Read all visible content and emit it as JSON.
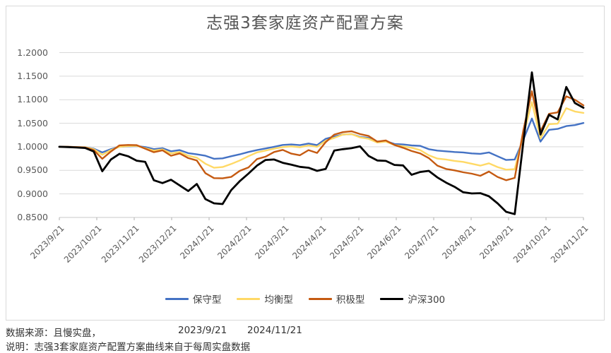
{
  "chart": {
    "title": "志强3套家庭资产配置方案"
  },
  "chart_data": {
    "type": "line",
    "title": "志强3套家庭资产配置方案",
    "ylim": [
      0.85,
      1.2
    ],
    "ytick_step": 0.05,
    "yticks": [
      "1.2000",
      "1.1500",
      "1.1000",
      "1.0500",
      "1.0000",
      "0.9500",
      "0.9000",
      "0.8500"
    ],
    "xticks": [
      "2023/9/21",
      "2023/10/21",
      "2023/11/21",
      "2023/12/21",
      "2024/1/21",
      "2024/2/21",
      "2024/3/21",
      "2024/4/21",
      "2024/5/21",
      "2024/6/21",
      "2024/7/21",
      "2024/8/21",
      "2024/9/21",
      "2024/10/21",
      "2024/11/21"
    ],
    "grid": "horizontal",
    "legend_position": "bottom",
    "series": [
      {
        "id": "conservative",
        "name": "保守型",
        "color": "#4472C4",
        "width": 2.4,
        "values": [
          1.0,
          1.0,
          0.9995,
          0.999,
          0.996,
          0.988,
          0.995,
          1.0,
          1.001,
          1.0015,
          0.9995,
          0.995,
          0.997,
          0.9905,
          0.993,
          0.9865,
          0.984,
          0.981,
          0.9745,
          0.9755,
          0.98,
          0.984,
          0.989,
          0.993,
          0.9965,
          1.0,
          1.004,
          1.005,
          1.0035,
          1.007,
          1.0035,
          1.017,
          1.022,
          1.026,
          1.027,
          1.021,
          1.019,
          1.011,
          1.012,
          1.006,
          1.005,
          1.003,
          1.002,
          0.995,
          0.992,
          0.9905,
          0.989,
          0.988,
          0.986,
          0.985,
          0.988,
          0.98,
          0.972,
          0.973,
          1.015,
          1.06,
          1.011,
          1.036,
          1.038,
          1.044,
          1.046,
          1.0505
        ]
      },
      {
        "id": "balanced",
        "name": "均衡型",
        "color": "#FFD966",
        "width": 2.4,
        "values": [
          1.0,
          1.0,
          0.9995,
          0.999,
          0.995,
          0.983,
          0.993,
          1.0,
          1.0015,
          1.002,
          0.997,
          0.992,
          0.9945,
          0.986,
          0.989,
          0.981,
          0.977,
          0.964,
          0.9555,
          0.957,
          0.9635,
          0.971,
          0.98,
          0.988,
          0.992,
          0.996,
          0.9995,
          1.001,
          0.999,
          1.003,
          1.0,
          1.013,
          1.019,
          1.026,
          1.027,
          1.02,
          1.017,
          1.009,
          1.011,
          1.004,
          1.001,
          0.998,
          0.993,
          0.982,
          0.975,
          0.973,
          0.97,
          0.968,
          0.964,
          0.96,
          0.965,
          0.957,
          0.9515,
          0.9525,
          1.025,
          1.095,
          1.018,
          1.048,
          1.049,
          1.082,
          1.075,
          1.072
        ]
      },
      {
        "id": "aggressive",
        "name": "积极型",
        "color": "#C55A11",
        "width": 2.4,
        "values": [
          1.0,
          1.0,
          0.9995,
          0.9985,
          0.993,
          0.9745,
          0.99,
          1.003,
          1.004,
          1.0035,
          0.996,
          0.9885,
          0.9925,
          0.981,
          0.986,
          0.976,
          0.971,
          0.944,
          0.9335,
          0.933,
          0.936,
          0.949,
          0.956,
          0.974,
          0.979,
          0.989,
          0.9935,
          0.9855,
          0.982,
          0.993,
          0.987,
          1.01,
          1.026,
          1.031,
          1.033,
          1.027,
          1.023,
          1.011,
          1.0135,
          1.004,
          0.998,
          0.991,
          0.986,
          0.976,
          0.96,
          0.953,
          0.95,
          0.946,
          0.943,
          0.9385,
          0.9475,
          0.936,
          0.929,
          0.934,
          1.035,
          1.118,
          1.033,
          1.07,
          1.073,
          1.107,
          1.1,
          1.088
        ]
      },
      {
        "id": "csi300",
        "name": "沪深300",
        "color": "#000000",
        "width": 2.8,
        "values": [
          1.0,
          0.9995,
          0.9985,
          0.9975,
          0.99,
          0.948,
          0.973,
          0.985,
          0.98,
          0.9705,
          0.968,
          0.929,
          0.923,
          0.93,
          0.918,
          0.906,
          0.921,
          0.889,
          0.88,
          0.8785,
          0.908,
          0.927,
          0.943,
          0.96,
          0.972,
          0.973,
          0.966,
          0.962,
          0.9575,
          0.9555,
          0.949,
          0.953,
          0.992,
          0.995,
          0.997,
          1.001,
          0.9805,
          0.971,
          0.97,
          0.9615,
          0.9605,
          0.9405,
          0.9465,
          0.949,
          0.935,
          0.924,
          0.915,
          0.9035,
          0.901,
          0.9015,
          0.895,
          0.88,
          0.862,
          0.857,
          1.01,
          1.158,
          1.026,
          1.068,
          1.058,
          1.127,
          1.093,
          1.083
        ]
      }
    ],
    "colors": {
      "grid": "#d9d9d9",
      "axis": "#c9c9c9",
      "tick": "#b0b0b0",
      "label": "#595959"
    }
  },
  "footer": {
    "source": "数据来源：且慢实盘，",
    "start_date": "2023/9/21",
    "end_date": "2024/11/21",
    "note": "说明：志强3套家庭资产配置方案曲线来自于每周实盘数据"
  }
}
